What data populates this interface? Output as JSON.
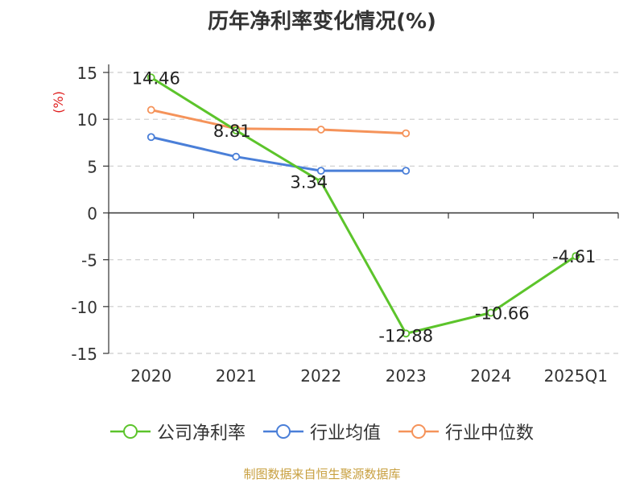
{
  "title": "历年净利率变化情况(%)",
  "footer": "制图数据来自恒生聚源数据库",
  "colors": {
    "title": "#333333",
    "axis": "#333333",
    "grid": "#cccccc",
    "ylabel": "#e02020",
    "footer": "#c8a040"
  },
  "chart_data": {
    "type": "line",
    "title": "历年净利率变化情况(%)",
    "xlabel": "",
    "ylabel": "(%)",
    "categories": [
      "2020",
      "2021",
      "2022",
      "2023",
      "2024",
      "2025Q1"
    ],
    "ylim": [
      -15,
      15
    ],
    "yticks": [
      15,
      10,
      5,
      0,
      -5,
      -10,
      -15
    ],
    "ytick_labels": [
      "15",
      "10",
      "5",
      "0",
      "-5",
      "-10",
      "-15"
    ],
    "grid": true,
    "legend_position": "bottom",
    "series": [
      {
        "name": "公司净利率",
        "color": "#5cc42b",
        "values": [
          14.46,
          8.81,
          3.34,
          -12.88,
          -10.66,
          -4.61
        ],
        "labels": [
          "14.46",
          "8.81",
          "3.34",
          "-12.88",
          "-10.66",
          "-4.61"
        ]
      },
      {
        "name": "行业均值",
        "color": "#4a7fd8",
        "values": [
          8.1,
          6.0,
          4.5,
          4.5,
          null,
          null
        ]
      },
      {
        "name": "行业中位数",
        "color": "#f5935a",
        "values": [
          11.0,
          9.0,
          8.9,
          8.5,
          null,
          null
        ]
      }
    ]
  }
}
